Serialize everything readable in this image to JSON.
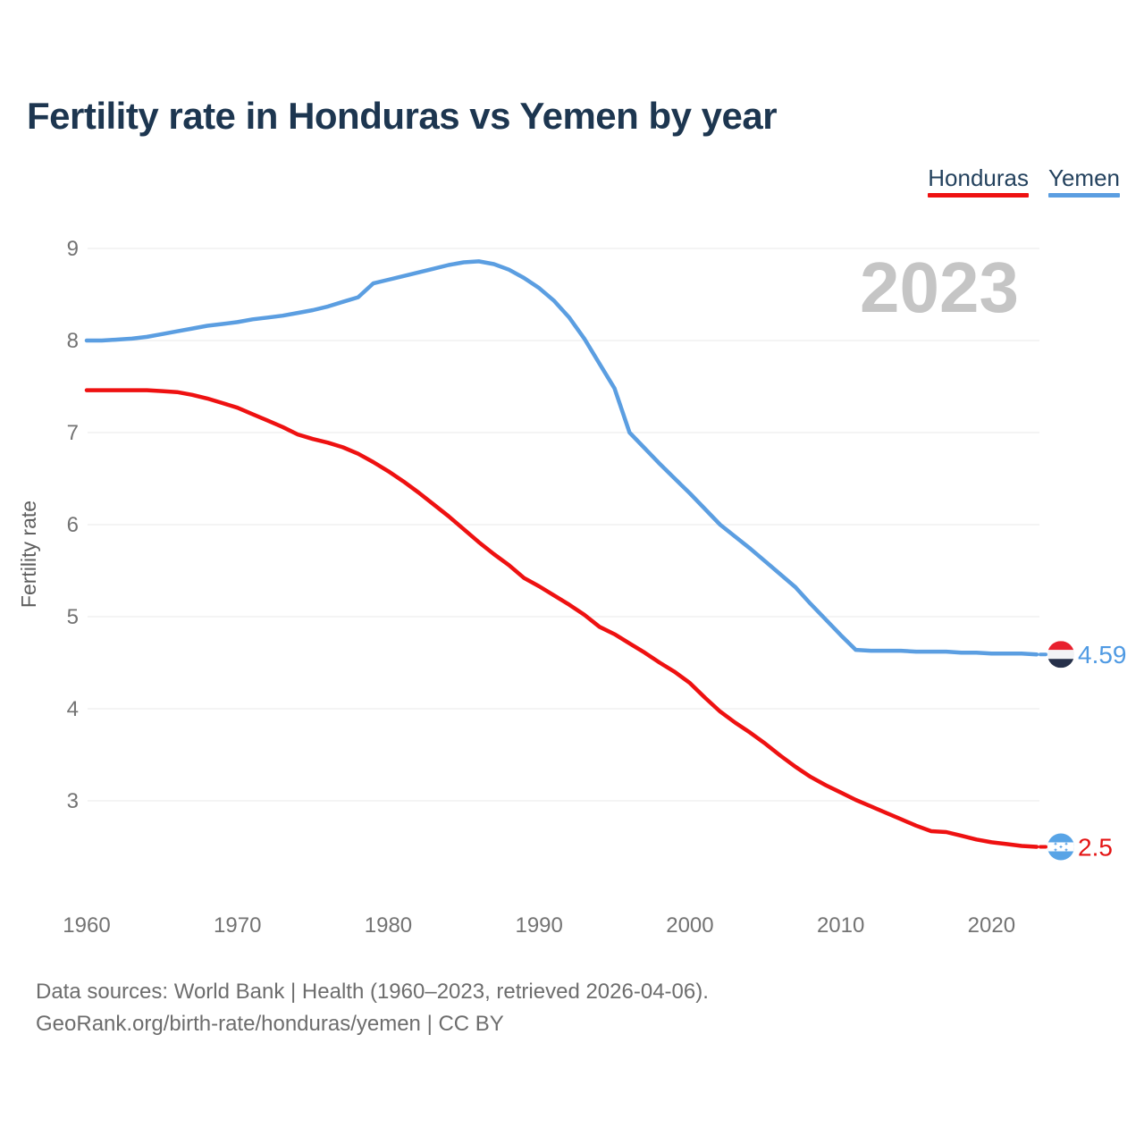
{
  "title": "Fertility rate in Honduras vs Yemen by year",
  "watermark": "2023",
  "legend": [
    {
      "label": "Honduras",
      "color": "#ee1111"
    },
    {
      "label": "Yemen",
      "color": "#5b9ee1"
    }
  ],
  "source": {
    "line1": "Data sources: World Bank | Health (1960–2023, retrieved 2026-04-06).",
    "line2": "GeoRank.org/birth-rate/honduras/yemen | CC BY"
  },
  "colors": {
    "grid": "#e9e9e9",
    "tick_text": "#737373",
    "axis_title_text": "#5f5f5f",
    "title_text": "#1d3650",
    "watermark_text": "#c5c5c5",
    "source_text": "#6d6d6d"
  },
  "flags": {
    "yemen": {
      "top": "#e8202e",
      "middle": "#f2f3f5",
      "bottom": "#26304a"
    },
    "honduras": {
      "band": "#58a4e6",
      "middle": "#ffffff",
      "star": "#4f9ce4"
    }
  },
  "chart_data": {
    "type": "line",
    "title": "Fertility rate in Honduras vs Yemen by year",
    "xlabel": "",
    "ylabel": "Fertility rate",
    "x_start": 1960,
    "x_end": 2023,
    "x_ticks": [
      1960,
      1970,
      1980,
      1990,
      2000,
      2010,
      2020
    ],
    "y_ticks": [
      3,
      4,
      5,
      6,
      7,
      8,
      9
    ],
    "ylim": [
      2.2,
      9.35
    ],
    "grid": true,
    "legend_position": "top-right",
    "series": [
      {
        "name": "Yemen",
        "color": "#5b9ee1",
        "end_label": "4.59",
        "end_label_color": "#4f9ae3",
        "flag": "yemen",
        "values": [
          8.0,
          8.0,
          8.01,
          8.02,
          8.04,
          8.07,
          8.1,
          8.13,
          8.16,
          8.18,
          8.2,
          8.23,
          8.25,
          8.27,
          8.3,
          8.33,
          8.37,
          8.42,
          8.47,
          8.62,
          8.66,
          8.7,
          8.74,
          8.78,
          8.82,
          8.85,
          8.86,
          8.83,
          8.77,
          8.68,
          8.57,
          8.43,
          8.25,
          8.02,
          7.75,
          7.48,
          7.0,
          6.83,
          6.66,
          6.5,
          6.34,
          6.17,
          6.0,
          5.87,
          5.74,
          5.6,
          5.46,
          5.32,
          5.14,
          4.97,
          4.8,
          4.64,
          4.63,
          4.63,
          4.63,
          4.62,
          4.62,
          4.62,
          4.61,
          4.61,
          4.6,
          4.6,
          4.6,
          4.59
        ]
      },
      {
        "name": "Honduras",
        "color": "#ee1111",
        "end_label": "2.5",
        "end_label_color": "#e41414",
        "flag": "honduras",
        "values": [
          7.46,
          7.46,
          7.46,
          7.46,
          7.46,
          7.45,
          7.44,
          7.41,
          7.37,
          7.32,
          7.27,
          7.2,
          7.13,
          7.06,
          6.98,
          6.93,
          6.89,
          6.84,
          6.77,
          6.68,
          6.58,
          6.47,
          6.35,
          6.22,
          6.09,
          5.95,
          5.81,
          5.68,
          5.56,
          5.42,
          5.33,
          5.23,
          5.13,
          5.02,
          4.89,
          4.81,
          4.71,
          4.61,
          4.5,
          4.4,
          4.28,
          4.12,
          3.97,
          3.85,
          3.74,
          3.62,
          3.49,
          3.37,
          3.26,
          3.17,
          3.09,
          3.01,
          2.94,
          2.87,
          2.8,
          2.73,
          2.67,
          2.66,
          2.62,
          2.58,
          2.55,
          2.53,
          2.51,
          2.5
        ]
      }
    ]
  }
}
